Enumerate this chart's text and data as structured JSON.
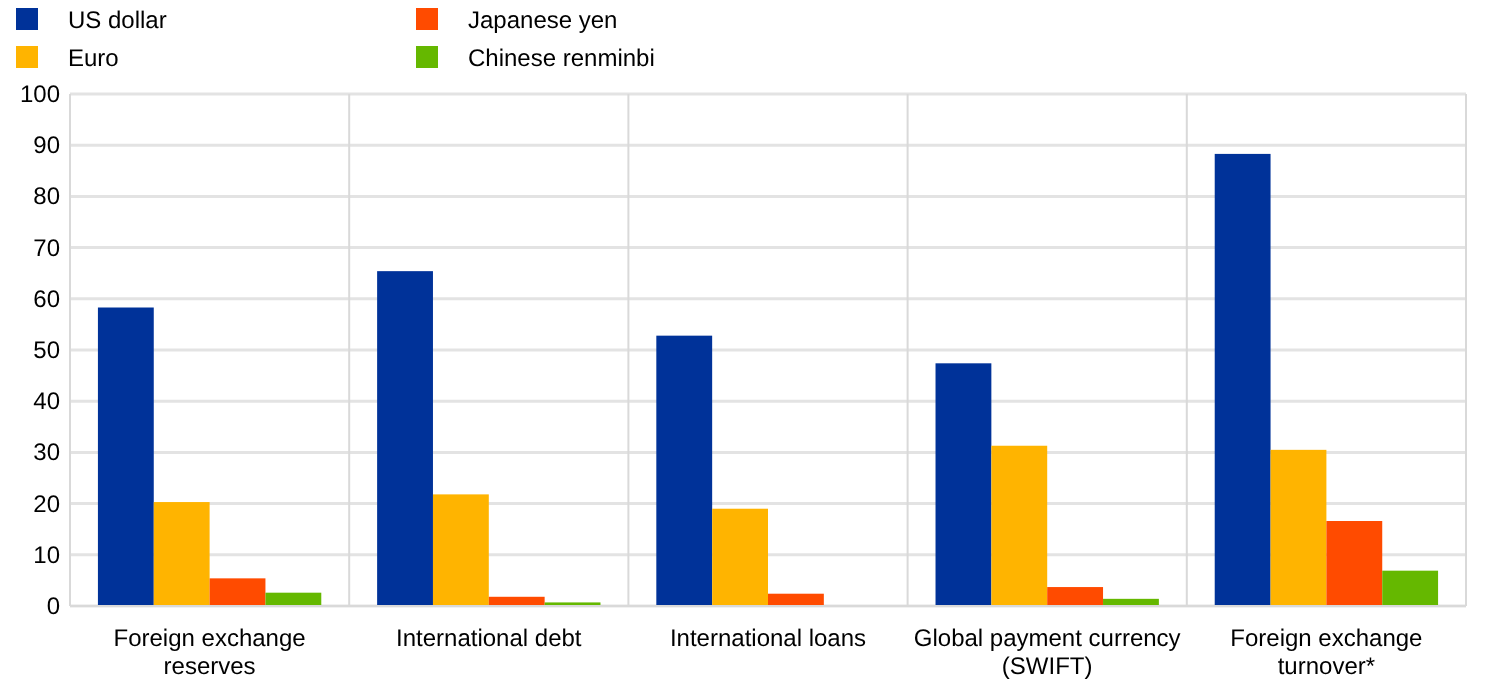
{
  "chart_data": {
    "type": "bar",
    "categories": [
      "Foreign exchange reserves",
      "International debt",
      "International loans",
      "Global payment currency (SWIFT)",
      "Foreign exchange turnover*"
    ],
    "series": [
      {
        "name": "US dollar",
        "color": "#003299",
        "values": [
          58.3,
          65.4,
          52.8,
          47.4,
          88.3
        ]
      },
      {
        "name": "Euro",
        "color": "#ffb400",
        "values": [
          20.3,
          21.8,
          19.0,
          31.3,
          30.5
        ]
      },
      {
        "name": "Japanese yen",
        "color": "#ff4b00",
        "values": [
          5.4,
          1.8,
          2.4,
          3.7,
          16.6
        ]
      },
      {
        "name": "Chinese renminbi",
        "color": "#65b800",
        "values": [
          2.6,
          0.7,
          null,
          1.4,
          6.9
        ]
      }
    ],
    "ylim": [
      0,
      100
    ],
    "yticks": [
      0,
      10,
      20,
      30,
      40,
      50,
      60,
      70,
      80,
      90,
      100
    ],
    "grid": true,
    "legend": "top left"
  }
}
